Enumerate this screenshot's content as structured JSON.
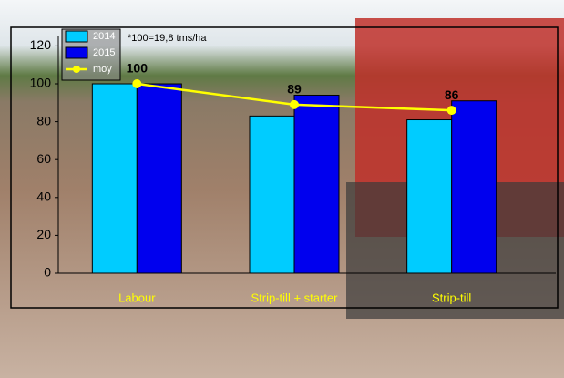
{
  "chart_data": {
    "type": "bar",
    "annotation": "*100=19,8 tms/ha",
    "categories": [
      "Labour",
      "Strip-till + starter",
      "Strip-till"
    ],
    "series": [
      {
        "name": "2014",
        "color": "#00ccff",
        "type": "bar",
        "values": [
          100,
          83,
          81
        ]
      },
      {
        "name": "2015",
        "color": "#0000ee",
        "type": "bar",
        "values": [
          100,
          94,
          91
        ]
      },
      {
        "name": "moy",
        "color": "#ffff00",
        "type": "line",
        "values": [
          100,
          89,
          86
        ]
      }
    ],
    "ylim": [
      0,
      125
    ],
    "yticks": [
      0,
      20,
      40,
      60,
      80,
      100,
      120
    ],
    "grid": false,
    "legend": "top-left"
  }
}
